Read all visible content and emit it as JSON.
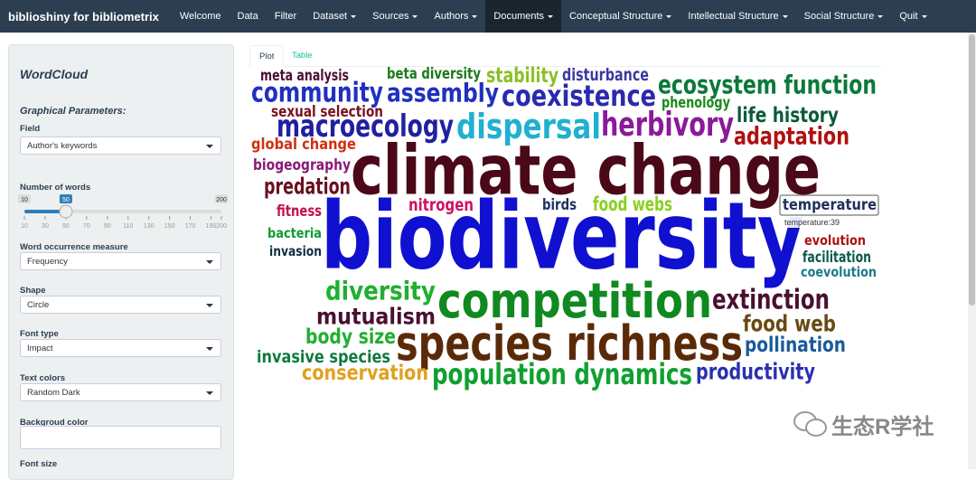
{
  "navbar": {
    "brand": "biblioshiny for bibliometrix",
    "items": [
      "Welcome",
      "Data",
      "Filter",
      "Dataset",
      "Sources",
      "Authors",
      "Documents",
      "Conceptual Structure",
      "Intellectual Structure",
      "Social Structure",
      "Quit"
    ]
  },
  "sidebar": {
    "title": "WordCloud",
    "section": "Graphical Parameters:",
    "field": {
      "label": "Field",
      "value": "Author's keywords"
    },
    "slider": {
      "label": "Number of words",
      "min": 10,
      "max": 200,
      "value": 50,
      "ticks": [
        10,
        30,
        50,
        70,
        90,
        110,
        130,
        150,
        170,
        190,
        200
      ]
    },
    "selects": [
      {
        "label": "Word occurrence measure",
        "value": "Frequency"
      },
      {
        "label": "Shape",
        "value": "Circle"
      },
      {
        "label": "Font type",
        "value": "Impact"
      },
      {
        "label": "Text colors",
        "value": "Random Dark"
      }
    ],
    "background": {
      "label": "Backgroud color"
    },
    "font_size": {
      "label": "Font size"
    }
  },
  "tabs": [
    "Plot",
    "Table"
  ],
  "wordcloud": {
    "words": [
      {
        "text": "meta analysis",
        "color": "#4a1030"
      },
      {
        "text": "beta diversity",
        "color": "#1a7a1a"
      },
      {
        "text": "stability",
        "color": "#8cbf26"
      },
      {
        "text": "disturbance",
        "color": "#3a3aa0"
      },
      {
        "text": "community",
        "color": "#2030c0"
      },
      {
        "text": "assembly",
        "color": "#2030c0"
      },
      {
        "text": "coexistence",
        "color": "#2a2ab0"
      },
      {
        "text": "ecosystem function",
        "color": "#0a7a3a"
      },
      {
        "text": "sexual selection",
        "color": "#7a1020"
      },
      {
        "text": "phenology",
        "color": "#1a8a1a"
      },
      {
        "text": "macroecology",
        "color": "#2020a0"
      },
      {
        "text": "dispersal",
        "color": "#20b0d0"
      },
      {
        "text": "herbivory",
        "color": "#8a1a9a"
      },
      {
        "text": "life history",
        "color": "#0a5a3a"
      },
      {
        "text": "global change",
        "color": "#d03010"
      },
      {
        "text": "adaptation",
        "color": "#b01010"
      },
      {
        "text": "climate change",
        "color": "#4a0818"
      },
      {
        "text": "biogeography",
        "color": "#8a1a7a"
      },
      {
        "text": "predation",
        "color": "#6a1020"
      },
      {
        "text": "nitrogen",
        "color": "#d01060"
      },
      {
        "text": "birds",
        "color": "#203060"
      },
      {
        "text": "food webs",
        "color": "#8ad020"
      },
      {
        "text": "temperature",
        "color": "#203060"
      },
      {
        "text": "fitness",
        "color": "#c01050"
      },
      {
        "text": "biodiversity",
        "color": "#1010d0"
      },
      {
        "text": "bacteria",
        "color": "#109a30"
      },
      {
        "text": "invasion",
        "color": "#103040"
      },
      {
        "text": "evolution",
        "color": "#b01010"
      },
      {
        "text": "facilitation",
        "color": "#0a5a4a"
      },
      {
        "text": "coevolution",
        "color": "#1a7a8a"
      },
      {
        "text": "diversity",
        "color": "#20b030"
      },
      {
        "text": "competition",
        "color": "#108a20"
      },
      {
        "text": "extinction",
        "color": "#4a1030"
      },
      {
        "text": "mutualism",
        "color": "#4a1030"
      },
      {
        "text": "food web",
        "color": "#6a4a10"
      },
      {
        "text": "body size",
        "color": "#20b030"
      },
      {
        "text": "species richness",
        "color": "#5a2a08"
      },
      {
        "text": "pollination",
        "color": "#1a5a9a"
      },
      {
        "text": "invasive species",
        "color": "#107a40"
      },
      {
        "text": "conservation",
        "color": "#e0a020"
      },
      {
        "text": "population dynamics",
        "color": "#10a030"
      },
      {
        "text": "productivity",
        "color": "#2a30b0"
      }
    ],
    "tooltip": "temperature:39"
  },
  "watermark": "生态R学社"
}
